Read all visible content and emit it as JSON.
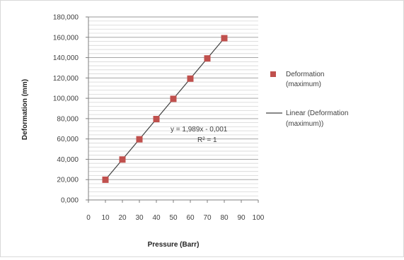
{
  "chart_data": {
    "type": "scatter",
    "title": "",
    "xlabel": "Pressure (Barr)",
    "ylabel": "Deformation (mm)",
    "xlim": [
      0,
      100
    ],
    "ylim": [
      0,
      180000
    ],
    "x_ticks": [
      0,
      10,
      20,
      30,
      40,
      50,
      60,
      70,
      80,
      90,
      100
    ],
    "x_tick_labels": [
      "0",
      "10",
      "20",
      "30",
      "40",
      "50",
      "60",
      "70",
      "80",
      "90",
      "100"
    ],
    "y_ticks": [
      0,
      20000,
      40000,
      60000,
      80000,
      100000,
      120000,
      140000,
      160000,
      180000
    ],
    "y_tick_labels": [
      "0,000",
      "20,000",
      "40,000",
      "60,000",
      "80,000",
      "100,000",
      "120,000",
      "140,000",
      "160,000",
      "180,000"
    ],
    "y_minor_step": 4000,
    "grid": "horizontal",
    "series": [
      {
        "name": "Deformation (maximum)",
        "color": "#c0504d",
        "marker": "square",
        "x": [
          10,
          20,
          30,
          40,
          50,
          60,
          70,
          80
        ],
        "y": [
          19890,
          39780,
          59670,
          79560,
          99450,
          119340,
          139230,
          159120
        ]
      }
    ],
    "trendline": {
      "name": "Linear (Deformation (maximum))",
      "color": "#404040",
      "slope": 1.989,
      "intercept": -0.001,
      "x_range": [
        10,
        80
      ],
      "equation_text": "y = 1,989x - 0,001",
      "r2_text": "R² = 1"
    },
    "legend": {
      "placement": "right",
      "entries": [
        {
          "line1": "Deformation",
          "line2": "(maximum)",
          "kind": "marker"
        },
        {
          "line1": "Linear (Deformation",
          "line2": "(maximum))",
          "kind": "line"
        }
      ]
    }
  }
}
